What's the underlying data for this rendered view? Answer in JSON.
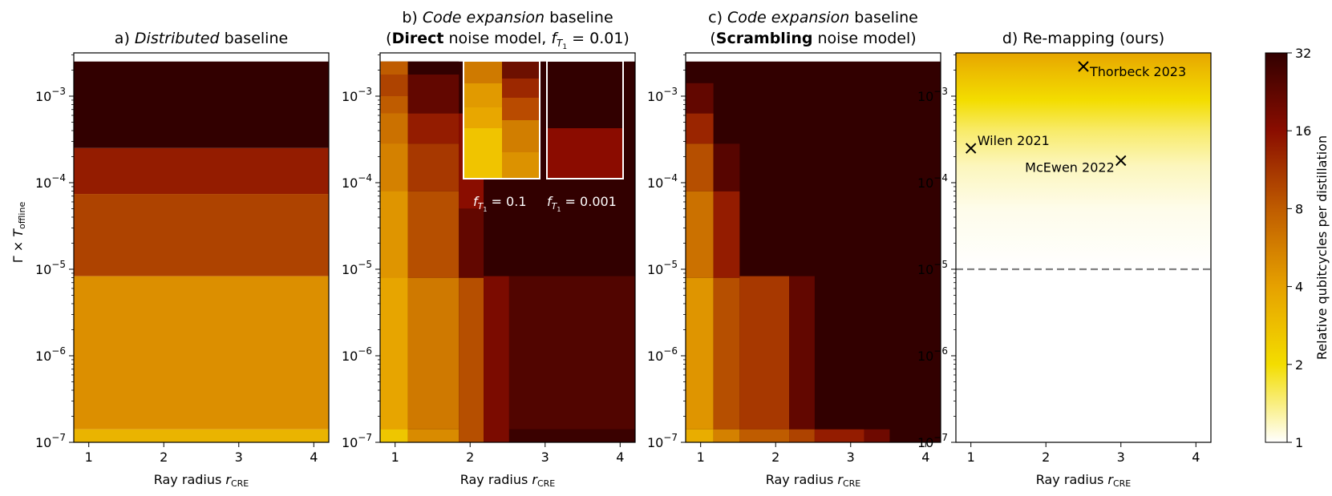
{
  "chart_data": [
    {
      "type": "heatmap",
      "panel": "a",
      "title_prefix": "a) ",
      "title_italic": "Distributed",
      "title_suffix": " baseline",
      "xlabel": "Ray radius ",
      "xlabel_var": "r",
      "xlabel_sub": "CRE",
      "ylabel_pre": "Γ × ",
      "ylabel_var": "T",
      "ylabel_sub": "offline",
      "x_ticks": [
        "1",
        "2",
        "3",
        "4"
      ],
      "y_ticks": [
        {
          "base": "10",
          "exp": "−3"
        },
        {
          "base": "10",
          "exp": "−4"
        },
        {
          "base": "10",
          "exp": "−5"
        },
        {
          "base": "10",
          "exp": "−6"
        },
        {
          "base": "10",
          "exp": "−7"
        }
      ],
      "x_range": [
        0.8,
        4.2
      ],
      "y_log_range": [
        -7,
        -2.5
      ],
      "cells": [
        {
          "x": [
            0.8,
            4.2
          ],
          "y": [
            -2.6,
            -3.6
          ],
          "value": 40
        },
        {
          "x": [
            0.8,
            4.2
          ],
          "y": [
            -3.6,
            -4.13
          ],
          "value": 14
        },
        {
          "x": [
            0.8,
            4.2
          ],
          "y": [
            -4.13,
            -5.08
          ],
          "value": 10
        },
        {
          "x": [
            0.8,
            4.2
          ],
          "y": [
            -5.08,
            -6.85
          ],
          "value": 4.8
        },
        {
          "x": [
            0.8,
            4.2
          ],
          "y": [
            -6.85,
            -7.0
          ],
          "value": 3.2
        }
      ]
    },
    {
      "type": "heatmap",
      "panel": "b",
      "title_line1_prefix": "b) ",
      "title_line1_italic": "Code expansion",
      "title_line1_suffix": " baseline",
      "title_line2_open": "(",
      "title_line2_bold": "Direct",
      "title_line2_mid": " noise model, ",
      "title_line2_var": "f",
      "title_line2_sub": "T",
      "title_line2_subsub": "1",
      "title_line2_eq": " = 0.01)",
      "xlabel": "Ray radius ",
      "xlabel_var": "r",
      "xlabel_sub": "CRE",
      "x_ticks": [
        "1",
        "2",
        "3",
        "4"
      ],
      "y_ticks": [
        {
          "base": "10",
          "exp": "−3"
        },
        {
          "base": "10",
          "exp": "−4"
        },
        {
          "base": "10",
          "exp": "−5"
        },
        {
          "base": "10",
          "exp": "−6"
        },
        {
          "base": "10",
          "exp": "−7"
        }
      ],
      "x_range": [
        0.8,
        4.2
      ],
      "y_log_range": [
        -7,
        -2.5
      ],
      "cells": [
        {
          "x": [
            0.8,
            4.2
          ],
          "y": [
            -2.6,
            -7.0
          ],
          "value": 40
        },
        {
          "x": [
            0.8,
            1.17
          ],
          "y": [
            -2.6,
            -7.0
          ],
          "value": 5
        },
        {
          "x": [
            0.8,
            1.17
          ],
          "y": [
            -2.6,
            -2.75
          ],
          "value": 8
        },
        {
          "x": [
            0.8,
            1.17
          ],
          "y": [
            -2.75,
            -3.0
          ],
          "value": 10
        },
        {
          "x": [
            0.8,
            1.17
          ],
          "y": [
            -3.0,
            -3.2
          ],
          "value": 8
        },
        {
          "x": [
            0.8,
            1.17
          ],
          "y": [
            -3.2,
            -3.55
          ],
          "value": 6.5
        },
        {
          "x": [
            0.8,
            1.17
          ],
          "y": [
            -3.55,
            -4.1
          ],
          "value": 5.5
        },
        {
          "x": [
            0.8,
            1.17
          ],
          "y": [
            -4.1,
            -5.1
          ],
          "value": 4.5
        },
        {
          "x": [
            0.8,
            1.17
          ],
          "y": [
            -5.1,
            -6.85
          ],
          "value": 3.8
        },
        {
          "x": [
            0.8,
            1.17
          ],
          "y": [
            -6.85,
            -7.0
          ],
          "value": 2.6
        },
        {
          "x": [
            1.17,
            1.85
          ],
          "y": [
            -2.6,
            -2.75
          ],
          "value": 40
        },
        {
          "x": [
            1.17,
            1.85
          ],
          "y": [
            -2.75,
            -3.2
          ],
          "value": 22
        },
        {
          "x": [
            1.17,
            1.85
          ],
          "y": [
            -3.2,
            -3.55
          ],
          "value": 14
        },
        {
          "x": [
            1.17,
            1.85
          ],
          "y": [
            -3.55,
            -4.1
          ],
          "value": 11
        },
        {
          "x": [
            1.17,
            1.85
          ],
          "y": [
            -4.1,
            -5.1
          ],
          "value": 9
        },
        {
          "x": [
            1.17,
            1.85
          ],
          "y": [
            -5.1,
            -6.85
          ],
          "value": 6
        },
        {
          "x": [
            1.17,
            1.85
          ],
          "y": [
            -6.85,
            -7.0
          ],
          "value": 5
        },
        {
          "x": [
            1.85,
            2.18
          ],
          "y": [
            -3.2,
            -4.3
          ],
          "value": 16
        },
        {
          "x": [
            1.85,
            2.18
          ],
          "y": [
            -4.3,
            -5.1
          ],
          "value": 22
        },
        {
          "x": [
            1.85,
            2.18
          ],
          "y": [
            -5.1,
            -7.0
          ],
          "value": 9
        },
        {
          "x": [
            2.18,
            2.52
          ],
          "y": [
            -5.08,
            -7.0
          ],
          "value": 18
        },
        {
          "x": [
            2.52,
            4.2
          ],
          "y": [
            -5.08,
            -6.85
          ],
          "value": 25
        },
        {
          "x": [
            2.52,
            4.2
          ],
          "y": [
            -6.85,
            -7.0
          ],
          "value": 30
        }
      ],
      "insets": [
        {
          "label_var": "f",
          "label_sub": "T",
          "label_subsub": "1",
          "label_eq": " = 0.1"
        },
        {
          "label_var": "f",
          "label_sub": "T",
          "label_subsub": "1",
          "label_eq": " = 0.001"
        }
      ]
    },
    {
      "type": "heatmap",
      "panel": "c",
      "title_line1_prefix": "c) ",
      "title_line1_italic": "Code expansion",
      "title_line1_suffix": " baseline",
      "title_line2_open": "(",
      "title_line2_bold": "Scrambling",
      "title_line2_close": " noise model)",
      "xlabel": "Ray radius ",
      "xlabel_var": "r",
      "xlabel_sub": "CRE",
      "x_ticks": [
        "1",
        "2",
        "3",
        "4"
      ],
      "y_ticks": [
        {
          "base": "10",
          "exp": "−3"
        },
        {
          "base": "10",
          "exp": "−4"
        },
        {
          "base": "10",
          "exp": "−5"
        },
        {
          "base": "10",
          "exp": "−6"
        },
        {
          "base": "10",
          "exp": "−7"
        }
      ],
      "x_range": [
        0.8,
        4.2
      ],
      "y_log_range": [
        -7,
        -2.5
      ],
      "cells": [
        {
          "x": [
            0.8,
            4.2
          ],
          "y": [
            -2.6,
            -7.0
          ],
          "value": 40
        },
        {
          "x": [
            0.8,
            1.17
          ],
          "y": [
            -2.85,
            -3.2
          ],
          "value": 22
        },
        {
          "x": [
            0.8,
            1.17
          ],
          "y": [
            -3.2,
            -3.55
          ],
          "value": 13
        },
        {
          "x": [
            0.8,
            1.17
          ],
          "y": [
            -3.55,
            -4.1
          ],
          "value": 9
        },
        {
          "x": [
            0.8,
            1.17
          ],
          "y": [
            -4.1,
            -5.1
          ],
          "value": 6.5
        },
        {
          "x": [
            0.8,
            1.17
          ],
          "y": [
            -5.1,
            -6.85
          ],
          "value": 4.5
        },
        {
          "x": [
            0.8,
            1.17
          ],
          "y": [
            -6.85,
            -7.0
          ],
          "value": 3.5
        },
        {
          "x": [
            1.17,
            1.52
          ],
          "y": [
            -3.55,
            -4.1
          ],
          "value": 24
        },
        {
          "x": [
            1.17,
            1.52
          ],
          "y": [
            -4.1,
            -5.1
          ],
          "value": 14
        },
        {
          "x": [
            1.17,
            1.52
          ],
          "y": [
            -5.1,
            -6.85
          ],
          "value": 9
        },
        {
          "x": [
            1.17,
            1.52
          ],
          "y": [
            -6.85,
            -7.0
          ],
          "value": 5.5
        },
        {
          "x": [
            1.52,
            2.18
          ],
          "y": [
            -5.08,
            -6.85
          ],
          "value": 11
        },
        {
          "x": [
            1.52,
            2.18
          ],
          "y": [
            -6.85,
            -7.0
          ],
          "value": 8
        },
        {
          "x": [
            2.18,
            2.52
          ],
          "y": [
            -5.08,
            -6.85
          ],
          "value": 22
        },
        {
          "x": [
            2.18,
            2.52
          ],
          "y": [
            -6.85,
            -7.0
          ],
          "value": 10
        },
        {
          "x": [
            2.52,
            3.18
          ],
          "y": [
            -6.85,
            -7.0
          ],
          "value": 14
        },
        {
          "x": [
            3.18,
            3.52
          ],
          "y": [
            -6.85,
            -7.0
          ],
          "value": 20
        }
      ]
    },
    {
      "type": "heatmap",
      "panel": "d",
      "title_text": "d) Re-mapping (ours)",
      "xlabel": "Ray radius ",
      "xlabel_var": "r",
      "xlabel_sub": "CRE",
      "x_ticks": [
        "1",
        "2",
        "3",
        "4"
      ],
      "y_ticks": [
        {
          "base": "10",
          "exp": "−3"
        },
        {
          "base": "10",
          "exp": "−4"
        },
        {
          "base": "10",
          "exp": "−5"
        },
        {
          "base": "10",
          "exp": "−6"
        },
        {
          "base": "10",
          "exp": "−7"
        }
      ],
      "x_range": [
        0.8,
        4.2
      ],
      "y_log_range": [
        -7,
        -2.5
      ],
      "threshold_line": {
        "y": 1e-05,
        "style": "dashed",
        "color": "#808080"
      },
      "gradient_stops": [
        {
          "log_y": -2.5,
          "value": 3.8
        },
        {
          "log_y": -2.75,
          "value": 2.8
        },
        {
          "log_y": -3.05,
          "value": 2.0
        },
        {
          "log_y": -3.4,
          "value": 1.5
        },
        {
          "log_y": -3.8,
          "value": 1.2
        },
        {
          "log_y": -4.3,
          "value": 1.06
        },
        {
          "log_y": -5.0,
          "value": 1.0
        }
      ],
      "points": [
        {
          "label": "Thorbeck 2023",
          "x": 2.5,
          "y": 0.0022
        },
        {
          "label": "Wilen 2021",
          "x": 1.0,
          "y": 0.00025
        },
        {
          "label": "McEwen 2022",
          "x": 3.0,
          "y": 0.00018
        }
      ]
    }
  ],
  "colorbar": {
    "label": "Relative qubitcycles per distillation",
    "scale": "log2",
    "ticks": [
      "1",
      "2",
      "4",
      "8",
      "16",
      "32"
    ],
    "range": [
      1,
      32
    ],
    "colors": [
      "#ffffff",
      "#f3dd00",
      "#e6a100",
      "#bf5c00",
      "#8a0d00",
      "#320000"
    ]
  }
}
